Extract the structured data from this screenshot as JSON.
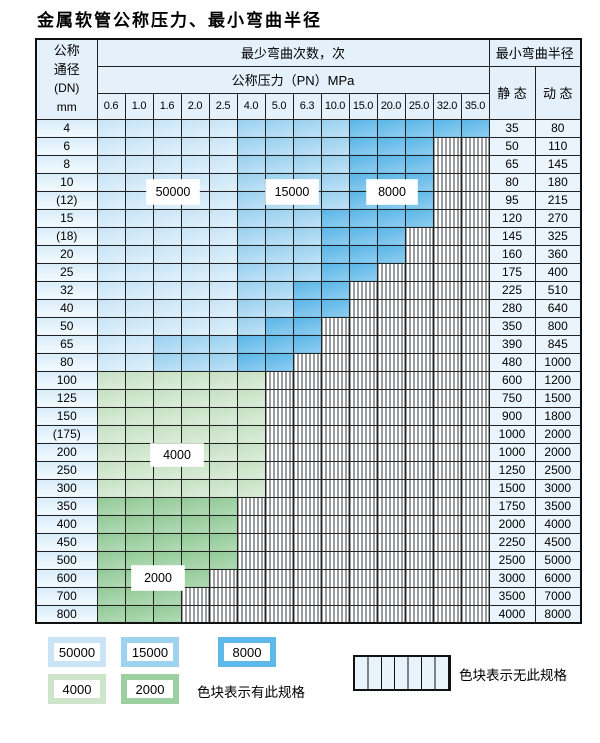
{
  "title": "金属软管公称压力、最小弯曲半径",
  "table": {
    "header": {
      "dn_lines": [
        "公称",
        "通径",
        "(DN)",
        "mm"
      ],
      "cycles": "最少弯曲次数，次",
      "pressure": "公称压力（PN）MPa",
      "radius": "最小弯曲半径",
      "static": "静 态",
      "dynamic": "动 态",
      "pressures": [
        "0.6",
        "1.0",
        "1.6",
        "2.0",
        "2.5",
        "4.0",
        "5.0",
        "6.3",
        "10.0",
        "15.0",
        "20.0",
        "25.0",
        "32.0",
        "35.0"
      ]
    }
  },
  "chart_data": {
    "type": "table",
    "title": "金属软管公称压力、最小弯曲半径",
    "columns_pressure_PN_MPa": [
      0.6,
      1.0,
      1.6,
      2.0,
      2.5,
      4.0,
      5.0,
      6.3,
      10.0,
      15.0,
      20.0,
      25.0,
      32.0,
      35.0
    ],
    "cell_code_legend": {
      "b1": "50000次",
      "b2": "15000次",
      "b3": "8000次",
      "g1": "4000次",
      "g2": "2000次",
      "x": "无此规格"
    },
    "rows": [
      {
        "dn": "4",
        "cells": [
          "b1",
          "b1",
          "b1",
          "b1",
          "b1",
          "b2",
          "b2",
          "b2",
          "b2",
          "b3",
          "b3",
          "b3",
          "b3",
          "b3"
        ],
        "static": "35",
        "dynamic": "80"
      },
      {
        "dn": "6",
        "cells": [
          "b1",
          "b1",
          "b1",
          "b1",
          "b1",
          "b2",
          "b2",
          "b2",
          "b2",
          "b3",
          "b3",
          "b3",
          "x",
          "x"
        ],
        "static": "50",
        "dynamic": "110"
      },
      {
        "dn": "8",
        "cells": [
          "b1",
          "b1",
          "b1",
          "b1",
          "b1",
          "b2",
          "b2",
          "b2",
          "b2",
          "b3",
          "b3",
          "b3",
          "x",
          "x"
        ],
        "static": "65",
        "dynamic": "145"
      },
      {
        "dn": "10",
        "cells": [
          "b1",
          "b1",
          "b1",
          "b1",
          "b1",
          "b2",
          "b2",
          "b2",
          "b2",
          "b3",
          "b3",
          "b3",
          "x",
          "x"
        ],
        "static": "80",
        "dynamic": "180"
      },
      {
        "dn": "(12)",
        "cells": [
          "b1",
          "b1",
          "b1",
          "b1",
          "b1",
          "b2",
          "b2",
          "b2",
          "b2",
          "b3",
          "b3",
          "b3",
          "x",
          "x"
        ],
        "static": "95",
        "dynamic": "215"
      },
      {
        "dn": "15",
        "cells": [
          "b1",
          "b1",
          "b1",
          "b1",
          "b1",
          "b2",
          "b2",
          "b2",
          "b3",
          "b3",
          "b3",
          "b3",
          "x",
          "x"
        ],
        "static": "120",
        "dynamic": "270"
      },
      {
        "dn": "(18)",
        "cells": [
          "b1",
          "b1",
          "b1",
          "b1",
          "b1",
          "b2",
          "b2",
          "b2",
          "b3",
          "b3",
          "b3",
          "x",
          "x",
          "x"
        ],
        "static": "145",
        "dynamic": "325"
      },
      {
        "dn": "20",
        "cells": [
          "b1",
          "b1",
          "b1",
          "b1",
          "b1",
          "b2",
          "b2",
          "b2",
          "b3",
          "b3",
          "b3",
          "x",
          "x",
          "x"
        ],
        "static": "160",
        "dynamic": "360"
      },
      {
        "dn": "25",
        "cells": [
          "b1",
          "b1",
          "b1",
          "b1",
          "b1",
          "b2",
          "b2",
          "b2",
          "b3",
          "b3",
          "x",
          "x",
          "x",
          "x"
        ],
        "static": "175",
        "dynamic": "400"
      },
      {
        "dn": "32",
        "cells": [
          "b1",
          "b1",
          "b1",
          "b1",
          "b1",
          "b2",
          "b2",
          "b3",
          "b3",
          "x",
          "x",
          "x",
          "x",
          "x"
        ],
        "static": "225",
        "dynamic": "510"
      },
      {
        "dn": "40",
        "cells": [
          "b1",
          "b1",
          "b1",
          "b1",
          "b1",
          "b2",
          "b2",
          "b3",
          "b3",
          "x",
          "x",
          "x",
          "x",
          "x"
        ],
        "static": "280",
        "dynamic": "640"
      },
      {
        "dn": "50",
        "cells": [
          "b1",
          "b1",
          "b1",
          "b1",
          "b1",
          "b2",
          "b3",
          "b3",
          "x",
          "x",
          "x",
          "x",
          "x",
          "x"
        ],
        "static": "350",
        "dynamic": "800"
      },
      {
        "dn": "65",
        "cells": [
          "b1",
          "b1",
          "b2",
          "b2",
          "b2",
          "b3",
          "b3",
          "b3",
          "x",
          "x",
          "x",
          "x",
          "x",
          "x"
        ],
        "static": "390",
        "dynamic": "845"
      },
      {
        "dn": "80",
        "cells": [
          "b1",
          "b1",
          "b2",
          "b2",
          "b2",
          "b3",
          "b3",
          "x",
          "x",
          "x",
          "x",
          "x",
          "x",
          "x"
        ],
        "static": "480",
        "dynamic": "1000"
      },
      {
        "dn": "100",
        "cells": [
          "g1",
          "g1",
          "g1",
          "g1",
          "g1",
          "g1",
          "x",
          "x",
          "x",
          "x",
          "x",
          "x",
          "x",
          "x"
        ],
        "static": "600",
        "dynamic": "1200"
      },
      {
        "dn": "125",
        "cells": [
          "g1",
          "g1",
          "g1",
          "g1",
          "g1",
          "g1",
          "x",
          "x",
          "x",
          "x",
          "x",
          "x",
          "x",
          "x"
        ],
        "static": "750",
        "dynamic": "1500"
      },
      {
        "dn": "150",
        "cells": [
          "g1",
          "g1",
          "g1",
          "g1",
          "g1",
          "g1",
          "x",
          "x",
          "x",
          "x",
          "x",
          "x",
          "x",
          "x"
        ],
        "static": "900",
        "dynamic": "1800"
      },
      {
        "dn": "(175)",
        "cells": [
          "g1",
          "g1",
          "g1",
          "g1",
          "g1",
          "g1",
          "x",
          "x",
          "x",
          "x",
          "x",
          "x",
          "x",
          "x"
        ],
        "static": "1000",
        "dynamic": "2000"
      },
      {
        "dn": "200",
        "cells": [
          "g1",
          "g1",
          "g1",
          "g1",
          "g1",
          "g1",
          "x",
          "x",
          "x",
          "x",
          "x",
          "x",
          "x",
          "x"
        ],
        "static": "1000",
        "dynamic": "2000"
      },
      {
        "dn": "250",
        "cells": [
          "g1",
          "g1",
          "g1",
          "g1",
          "g1",
          "g1",
          "x",
          "x",
          "x",
          "x",
          "x",
          "x",
          "x",
          "x"
        ],
        "static": "1250",
        "dynamic": "2500"
      },
      {
        "dn": "300",
        "cells": [
          "g1",
          "g1",
          "g1",
          "g1",
          "g1",
          "g1",
          "x",
          "x",
          "x",
          "x",
          "x",
          "x",
          "x",
          "x"
        ],
        "static": "1500",
        "dynamic": "3000"
      },
      {
        "dn": "350",
        "cells": [
          "g2",
          "g2",
          "g2",
          "g2",
          "g2",
          "x",
          "x",
          "x",
          "x",
          "x",
          "x",
          "x",
          "x",
          "x"
        ],
        "static": "1750",
        "dynamic": "3500"
      },
      {
        "dn": "400",
        "cells": [
          "g2",
          "g2",
          "g2",
          "g2",
          "g2",
          "x",
          "x",
          "x",
          "x",
          "x",
          "x",
          "x",
          "x",
          "x"
        ],
        "static": "2000",
        "dynamic": "4000"
      },
      {
        "dn": "450",
        "cells": [
          "g2",
          "g2",
          "g2",
          "g2",
          "g2",
          "x",
          "x",
          "x",
          "x",
          "x",
          "x",
          "x",
          "x",
          "x"
        ],
        "static": "2250",
        "dynamic": "4500"
      },
      {
        "dn": "500",
        "cells": [
          "g2",
          "g2",
          "g2",
          "g2",
          "g2",
          "x",
          "x",
          "x",
          "x",
          "x",
          "x",
          "x",
          "x",
          "x"
        ],
        "static": "2500",
        "dynamic": "5000"
      },
      {
        "dn": "600",
        "cells": [
          "g2",
          "g2",
          "g2",
          "g2",
          "x",
          "x",
          "x",
          "x",
          "x",
          "x",
          "x",
          "x",
          "x",
          "x"
        ],
        "static": "3000",
        "dynamic": "6000"
      },
      {
        "dn": "700",
        "cells": [
          "g2",
          "g2",
          "g2",
          "x",
          "x",
          "x",
          "x",
          "x",
          "x",
          "x",
          "x",
          "x",
          "x",
          "x"
        ],
        "static": "3500",
        "dynamic": "7000"
      },
      {
        "dn": "800",
        "cells": [
          "g2",
          "g2",
          "g2",
          "x",
          "x",
          "x",
          "x",
          "x",
          "x",
          "x",
          "x",
          "x",
          "x",
          "x"
        ],
        "static": "4000",
        "dynamic": "8000"
      }
    ]
  },
  "overlays": [
    {
      "text": "50000"
    },
    {
      "text": "15000"
    },
    {
      "text": "8000"
    },
    {
      "text": "4000"
    },
    {
      "text": "2000"
    }
  ],
  "legend": {
    "items": [
      {
        "value": "50000",
        "color": "#c9e4f6"
      },
      {
        "value": "15000",
        "color": "#9fd2f0"
      },
      {
        "value": "8000",
        "color": "#5fb9e8"
      },
      {
        "value": "4000",
        "color": "#cde5cb"
      },
      {
        "value": "2000",
        "color": "#9bcf9f"
      }
    ],
    "available_caption": "色块表示有此规格",
    "unavailable_caption": "色块表示无此规格"
  }
}
